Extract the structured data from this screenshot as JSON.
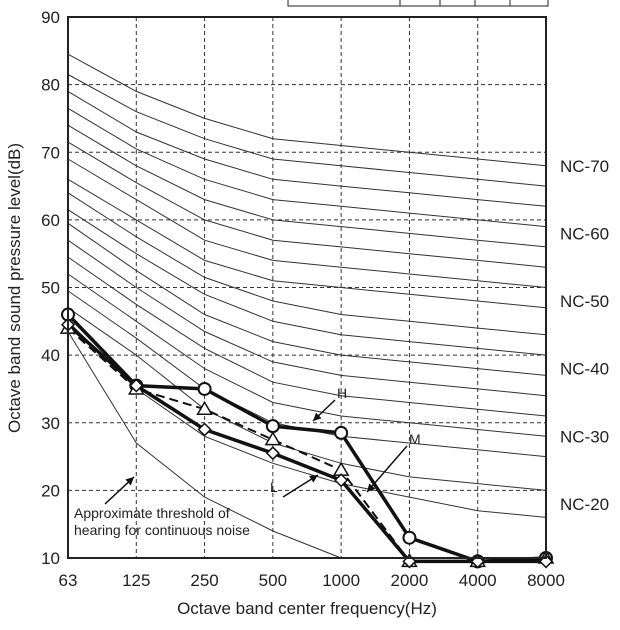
{
  "chart_data": {
    "type": "line",
    "xlabel": "Octave band center frequency(Hz)",
    "ylabel": "Octave band sound pressure level(dB)",
    "x_categories": [
      "63",
      "125",
      "250",
      "500",
      "1000",
      "2000",
      "4000",
      "8000"
    ],
    "ylim": [
      10,
      90
    ],
    "yticks": [
      "10",
      "20",
      "30",
      "40",
      "50",
      "60",
      "70",
      "80",
      "90"
    ],
    "grid": true,
    "nc_curves": [
      {
        "label": "NC-70",
        "values": [
          84.5,
          79,
          75,
          72,
          71,
          70,
          69,
          68
        ]
      },
      {
        "label": "",
        "values": [
          81.5,
          76,
          72,
          69,
          68,
          67,
          66,
          65
        ]
      },
      {
        "label": "",
        "values": [
          79,
          73,
          69,
          66,
          65,
          64,
          63,
          62
        ]
      },
      {
        "label": "",
        "values": [
          76.5,
          70.5,
          66,
          63,
          62,
          61,
          60,
          59
        ]
      },
      {
        "label": "NC-60",
        "values": [
          74,
          68,
          63,
          60,
          59,
          58,
          57,
          56
        ]
      },
      {
        "label": "",
        "values": [
          71.5,
          65.5,
          60,
          57,
          56,
          55,
          54,
          53
        ]
      },
      {
        "label": "",
        "values": [
          69,
          63,
          57,
          54,
          53,
          52,
          51,
          50
        ]
      },
      {
        "label": "",
        "values": [
          66,
          60,
          54,
          51,
          50,
          49,
          48,
          47
        ]
      },
      {
        "label": "NC-50",
        "values": [
          64,
          57.5,
          51.5,
          48,
          46,
          45,
          44,
          43
        ]
      },
      {
        "label": "",
        "values": [
          61.5,
          55,
          49,
          45,
          43,
          42,
          41,
          40
        ]
      },
      {
        "label": "",
        "values": [
          59.5,
          52.5,
          46,
          42,
          40,
          39,
          38,
          37
        ]
      },
      {
        "label": "",
        "values": [
          57,
          50,
          43.5,
          39,
          37,
          36,
          35,
          34
        ]
      },
      {
        "label": "NC-40",
        "values": [
          54.5,
          47.5,
          41,
          36,
          34,
          33,
          32,
          31
        ]
      },
      {
        "label": "",
        "values": [
          52,
          45,
          38,
          33,
          31,
          30,
          29,
          28
        ]
      },
      {
        "label": "",
        "values": [
          49.5,
          42.5,
          35,
          30,
          28,
          27,
          26,
          25
        ]
      },
      {
        "label": "NC-30",
        "values": [
          47,
          40,
          32,
          27,
          24,
          22,
          21,
          20
        ]
      },
      {
        "label": "NC-20",
        "values": [
          45,
          35,
          28,
          24,
          21,
          19,
          17,
          16
        ]
      }
    ],
    "nc_label_values": [
      "NC-70",
      "NC-60",
      "NC-50",
      "NC-40",
      "NC-30",
      "NC-20"
    ],
    "nc_label_y": [
      68,
      58,
      48,
      38,
      28,
      18
    ],
    "threshold_curve": {
      "values": [
        43.5,
        27,
        19,
        14,
        10
      ],
      "annotation_line1": "Approximate threshold of",
      "annotation_line2": "hearing for continuous noise"
    },
    "series": [
      {
        "name": "H",
        "marker": "circle",
        "style": "solid-bold",
        "values": [
          46,
          35.5,
          35,
          29.5,
          28.5,
          13,
          9.5,
          10
        ]
      },
      {
        "name": "M",
        "marker": "triangle",
        "style": "dashed",
        "values": [
          44,
          35,
          32,
          27.5,
          23,
          9.5,
          9.5,
          10
        ]
      },
      {
        "name": "L",
        "marker": "diamond",
        "style": "solid-bold",
        "values": [
          44.5,
          35.5,
          29,
          25.5,
          21.5,
          9.5,
          9.5,
          9.5
        ]
      }
    ]
  }
}
